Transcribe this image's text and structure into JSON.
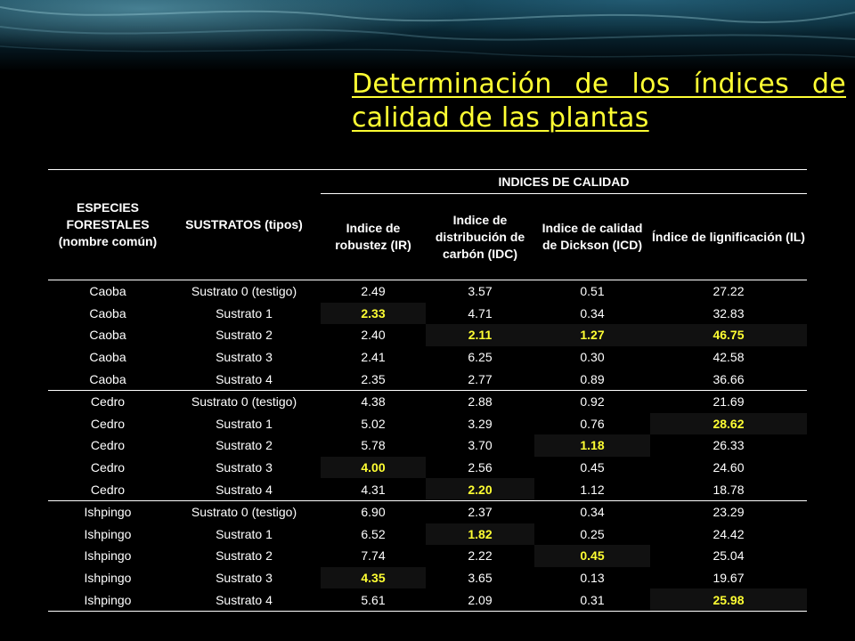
{
  "slide": {
    "title": "Determinación de los índices de calidad de las plantas"
  },
  "table": {
    "col_species": "ESPECIES FORESTALES (nombre común)",
    "col_substrate": "SUSTRATOS (tipos)",
    "group_header": "INDICES DE CALIDAD",
    "col_ir": "Indice de robustez (IR)",
    "col_idc": "Indice de distribución de carbón (IDC)",
    "col_icd": "Indice de calidad de Dickson (ICD)",
    "col_il": "Índice de lignificación (IL)",
    "rows": [
      {
        "species": "Caoba",
        "substrate": "Sustrato 0 (testigo)",
        "ir": "2.49",
        "idc": "3.57",
        "icd": "0.51",
        "il": "27.22"
      },
      {
        "species": "Caoba",
        "substrate": "Sustrato 1",
        "ir": "2.33",
        "idc": "4.71",
        "icd": "0.34",
        "il": "32.83"
      },
      {
        "species": "Caoba",
        "substrate": "Sustrato 2",
        "ir": "2.40",
        "idc": "2.11",
        "icd": "1.27",
        "il": "46.75"
      },
      {
        "species": "Caoba",
        "substrate": "Sustrato 3",
        "ir": "2.41",
        "idc": "6.25",
        "icd": "0.30",
        "il": "42.58"
      },
      {
        "species": "Caoba",
        "substrate": "Sustrato 4",
        "ir": "2.35",
        "idc": "2.77",
        "icd": "0.89",
        "il": "36.66"
      },
      {
        "species": "Cedro",
        "substrate": "Sustrato 0 (testigo)",
        "ir": "4.38",
        "idc": "2.88",
        "icd": "0.92",
        "il": "21.69"
      },
      {
        "species": "Cedro",
        "substrate": "Sustrato 1",
        "ir": "5.02",
        "idc": "3.29",
        "icd": "0.76",
        "il": "28.62"
      },
      {
        "species": "Cedro",
        "substrate": "Sustrato 2",
        "ir": "5.78",
        "idc": "3.70",
        "icd": "1.18",
        "il": "26.33"
      },
      {
        "species": "Cedro",
        "substrate": "Sustrato 3",
        "ir": "4.00",
        "idc": "2.56",
        "icd": "0.45",
        "il": "24.60"
      },
      {
        "species": "Cedro",
        "substrate": "Sustrato 4",
        "ir": "4.31",
        "idc": "2.20",
        "icd": "1.12",
        "il": "18.78"
      },
      {
        "species": "Ishpingo",
        "substrate": "Sustrato 0 (testigo)",
        "ir": "6.90",
        "idc": "2.37",
        "icd": "0.34",
        "il": "23.29"
      },
      {
        "species": "Ishpingo",
        "substrate": "Sustrato 1",
        "ir": "6.52",
        "idc": "1.82",
        "icd": "0.25",
        "il": "24.42"
      },
      {
        "species": "Ishpingo",
        "substrate": "Sustrato 2",
        "ir": "7.74",
        "idc": "2.22",
        "icd": "0.45",
        "il": "25.04"
      },
      {
        "species": "Ishpingo",
        "substrate": "Sustrato 3",
        "ir": "4.35",
        "idc": "3.65",
        "icd": "0.13",
        "il": "19.67"
      },
      {
        "species": "Ishpingo",
        "substrate": "Sustrato 4",
        "ir": "5.61",
        "idc": "2.09",
        "icd": "0.31",
        "il": "25.98"
      }
    ]
  },
  "colors": {
    "background": "#000000",
    "title": "#ffff33",
    "highlight_text": "#ffff33",
    "highlight_bg": "#111111"
  }
}
